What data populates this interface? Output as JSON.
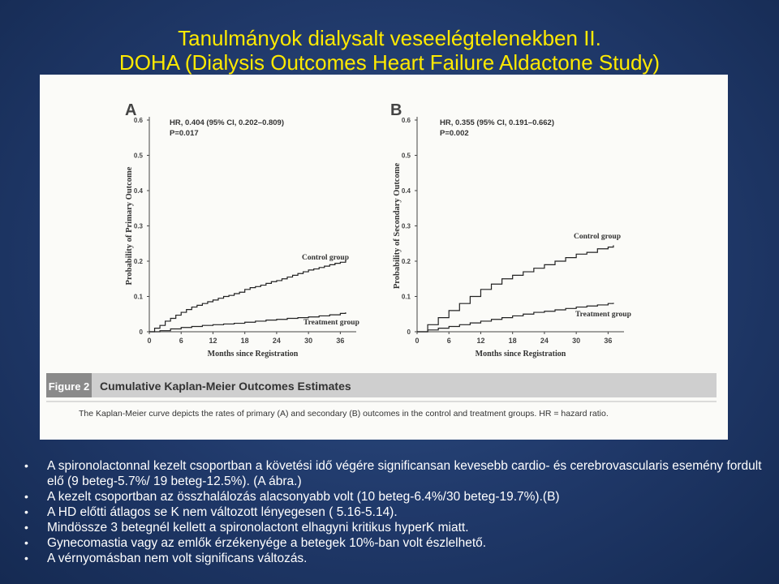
{
  "title_line1": "Tanulmányok dialysalt veseelégtelenekben II.",
  "title_line2": "DOHA (Dialysis Outcomes Heart Failure Aldactone Study)",
  "figure": {
    "caption_title": "Figure 2",
    "caption_heading": "Cumulative Kaplan-Meier Outcomes Estimates",
    "caption_text": "The Kaplan-Meier curve depicts the rates of primary (A) and secondary (B) outcomes in the control and treatment groups. HR = hazard ratio."
  },
  "chart_data": [
    {
      "type": "line",
      "panel_label": "A",
      "ylabel": "Probability of Primary Outcome",
      "xlabel": "Months since Registration",
      "x_ticks": [
        "0",
        "6",
        "12",
        "18",
        "24",
        "30",
        "36"
      ],
      "y_ticks": [
        "0",
        "0.1",
        "0.2",
        "0.3",
        "0.4",
        "0.5",
        "0.6"
      ],
      "xlim": [
        0,
        39
      ],
      "ylim": [
        0,
        0.6
      ],
      "stats_line1": "HR, 0.404 (95% CI, 0.202–0.809)",
      "stats_line2": "P=0.017",
      "series": [
        {
          "name": "Control group",
          "color": "#222222",
          "x": [
            0,
            1,
            2,
            3,
            4,
            5,
            6,
            7,
            8,
            9,
            10,
            11,
            12,
            13,
            14,
            15,
            16,
            17,
            18,
            19,
            20,
            21,
            22,
            23,
            24,
            25,
            26,
            27,
            28,
            29,
            30,
            31,
            32,
            33,
            34,
            35,
            36,
            37
          ],
          "y": [
            0,
            0.01,
            0.018,
            0.03,
            0.038,
            0.047,
            0.055,
            0.063,
            0.07,
            0.075,
            0.08,
            0.085,
            0.09,
            0.095,
            0.1,
            0.103,
            0.108,
            0.112,
            0.12,
            0.125,
            0.128,
            0.132,
            0.137,
            0.142,
            0.145,
            0.15,
            0.155,
            0.16,
            0.165,
            0.17,
            0.175,
            0.178,
            0.182,
            0.186,
            0.19,
            0.194,
            0.197,
            0.2
          ]
        },
        {
          "name": "Treatment group",
          "color": "#222222",
          "x": [
            0,
            2,
            4,
            6,
            8,
            10,
            12,
            14,
            16,
            18,
            20,
            22,
            24,
            26,
            28,
            30,
            32,
            34,
            36,
            37
          ],
          "y": [
            0,
            0.003,
            0.008,
            0.012,
            0.015,
            0.018,
            0.02,
            0.022,
            0.024,
            0.027,
            0.03,
            0.033,
            0.035,
            0.038,
            0.04,
            0.042,
            0.045,
            0.048,
            0.052,
            0.055
          ]
        }
      ]
    },
    {
      "type": "line",
      "panel_label": "B",
      "ylabel": "Probability of Secondary Outcome",
      "xlabel": "Months since Registration",
      "x_ticks": [
        "0",
        "6",
        "12",
        "18",
        "24",
        "30",
        "36"
      ],
      "y_ticks": [
        "0",
        "0.1",
        "0.2",
        "0.3",
        "0.4",
        "0.5",
        "0.6"
      ],
      "xlim": [
        0,
        39
      ],
      "ylim": [
        0,
        0.6
      ],
      "stats_line1": "HR, 0.355 (95% CI, 0.191–0.662)",
      "stats_line2": "P=0.002",
      "series": [
        {
          "name": "Control group",
          "color": "#222222",
          "x": [
            0,
            2,
            4,
            6,
            8,
            10,
            12,
            14,
            16,
            18,
            20,
            22,
            24,
            26,
            28,
            30,
            32,
            34,
            36,
            37
          ],
          "y": [
            0,
            0.02,
            0.04,
            0.06,
            0.08,
            0.1,
            0.12,
            0.135,
            0.15,
            0.16,
            0.17,
            0.18,
            0.19,
            0.2,
            0.21,
            0.22,
            0.225,
            0.235,
            0.24,
            0.245
          ]
        },
        {
          "name": "Treatment group",
          "color": "#222222",
          "x": [
            0,
            2,
            4,
            6,
            8,
            10,
            12,
            14,
            16,
            18,
            20,
            22,
            24,
            26,
            28,
            30,
            32,
            34,
            36,
            37
          ],
          "y": [
            0,
            0.005,
            0.01,
            0.015,
            0.02,
            0.025,
            0.03,
            0.035,
            0.04,
            0.045,
            0.05,
            0.055,
            0.058,
            0.062,
            0.066,
            0.07,
            0.073,
            0.076,
            0.08,
            0.082
          ]
        }
      ]
    }
  ],
  "bullets": [
    "A spironolactonnal kezelt csoportban a követési idő végére significansan kevesebb cardio- és cerebrovascularis esemény fordult elő (9 beteg-5.7%/ 19 beteg-12.5%). (A ábra.)",
    "A kezelt csoportban az összhalálozás alacsonyabb volt (10 beteg-6.4%/30 beteg-19.7%).(B)",
    "A HD előtti átlagos se K nem változott lényegesen ( 5.16-5.14).",
    "Mindössze 3 betegnél kellett a spironolactont elhagyni kritikus  hyperK miatt.",
    "Gynecomastia vagy az emlők érzékenyége a betegek 10%-ban volt észlelhető.",
    "A vérnyomásban nem volt significans változás."
  ],
  "bullet_symbol": "•"
}
